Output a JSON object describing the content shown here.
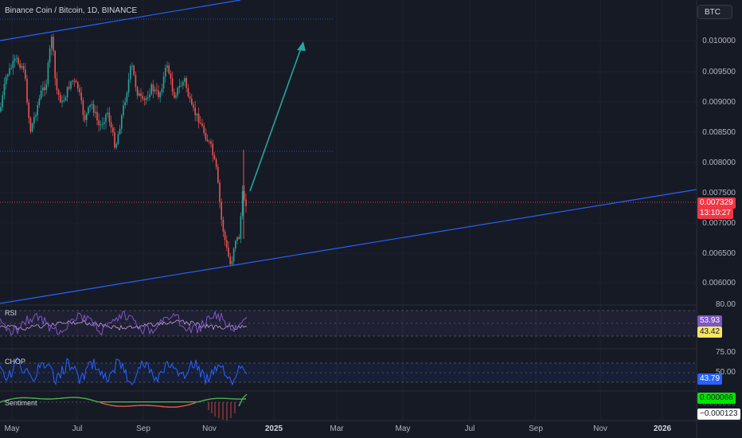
{
  "header": {
    "symbol": "Binance Coin / Bitcoin, 1D, BINANCE",
    "currency_button": "BTC"
  },
  "price_axis": [
    "0.010000",
    "0.009500",
    "0.009000",
    "0.008500",
    "0.008000",
    "0.007500",
    "0.007000",
    "0.006500",
    "0.006000"
  ],
  "last_price": {
    "value": "0.007329",
    "countdown": "13:10:27"
  },
  "rsi": {
    "title": "RSI",
    "top_label": "80.00",
    "value": "53.93",
    "ma_value": "43.42"
  },
  "chop": {
    "title": "CHOP",
    "top_label": "75.00",
    "level_label": "50.00",
    "value": "43.79"
  },
  "sentiment": {
    "title": "Sentiment",
    "value": "0.000066",
    "value2": "−0.000123",
    "hidden_label": "0.000000"
  },
  "time_axis": [
    "May",
    "Jul",
    "Sep",
    "Nov",
    "2025",
    "Mar",
    "May",
    "Jul",
    "Sep",
    "Nov",
    "2026"
  ],
  "colors": {
    "up": "#26a69a",
    "down": "#ef5350",
    "trendline": "#2962ff",
    "arrow": "#26a69a",
    "rsi": "#7e57c2",
    "chop": "#2962ff"
  }
}
